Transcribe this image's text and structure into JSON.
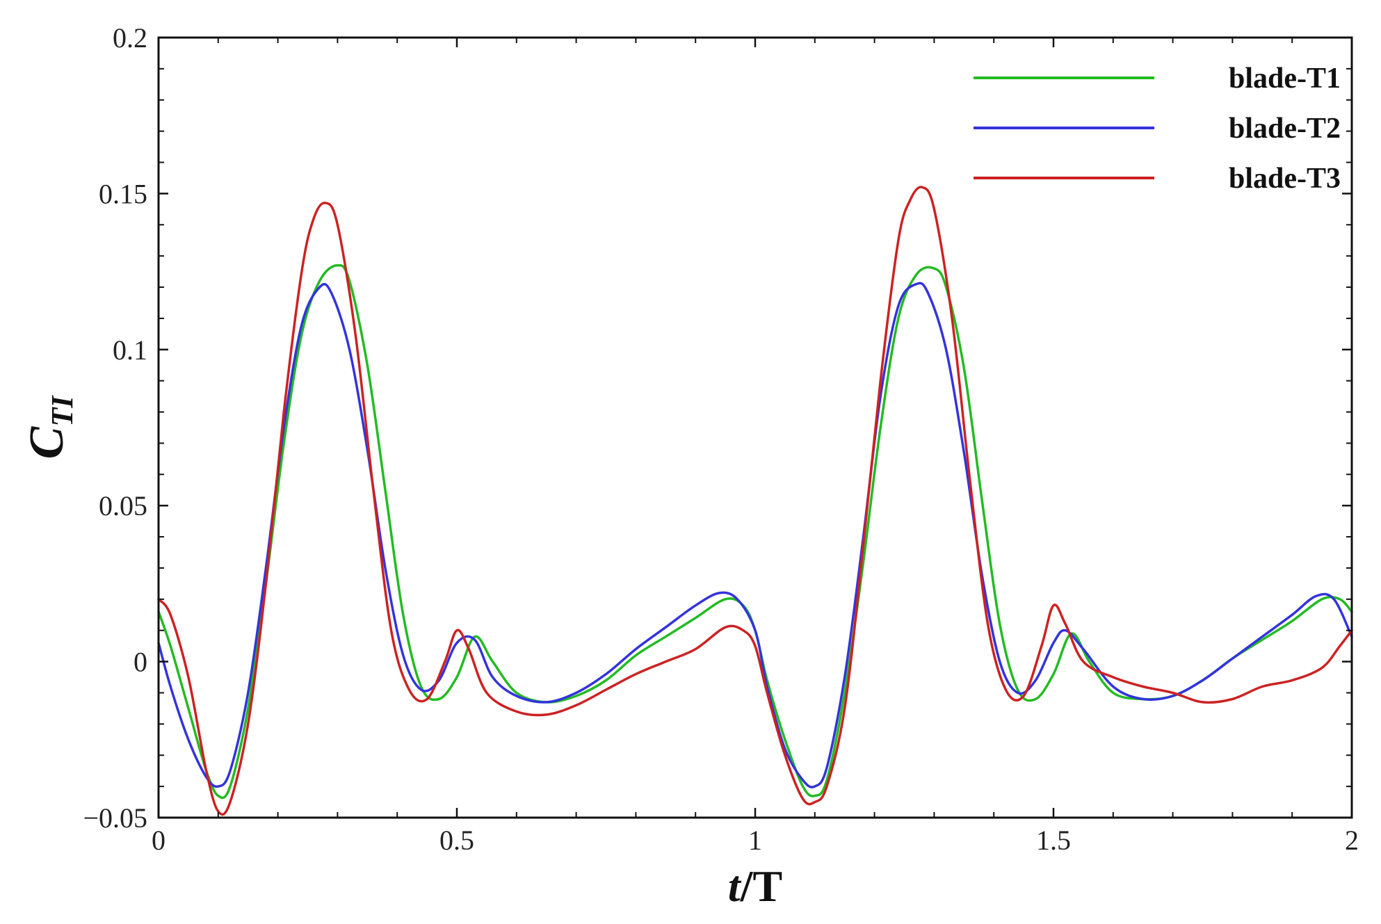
{
  "chart_data": {
    "type": "line",
    "xlabel_italic": "t",
    "xlabel_rest": "/T",
    "ylabel_main": "C",
    "ylabel_sub": "TI",
    "xlim": [
      0,
      2
    ],
    "ylim": [
      -0.05,
      0.2
    ],
    "xticks": [
      0,
      0.5,
      1,
      1.5,
      2
    ],
    "xtick_labels": [
      "0",
      "0.5",
      "1",
      "1.5",
      "2"
    ],
    "yticks": [
      -0.05,
      0,
      0.05,
      0.1,
      0.15,
      0.2
    ],
    "ytick_labels": [
      "−0.05",
      "0",
      "0.05",
      "0.1",
      "0.15",
      "0.2"
    ],
    "grid": false,
    "legend_position": "top-right",
    "series": [
      {
        "name": "blade-T1",
        "color": "#22bb22",
        "x": [
          0,
          0.02,
          0.05,
          0.08,
          0.1,
          0.12,
          0.15,
          0.18,
          0.21,
          0.24,
          0.27,
          0.3,
          0.32,
          0.35,
          0.38,
          0.41,
          0.44,
          0.47,
          0.5,
          0.53,
          0.56,
          0.6,
          0.65,
          0.7,
          0.75,
          0.8,
          0.85,
          0.9,
          0.95,
          0.98,
          1.0,
          1.02,
          1.05,
          1.08,
          1.1,
          1.12,
          1.15,
          1.18,
          1.21,
          1.24,
          1.27,
          1.3,
          1.32,
          1.35,
          1.38,
          1.41,
          1.44,
          1.47,
          1.5,
          1.53,
          1.56,
          1.6,
          1.65,
          1.7,
          1.75,
          1.8,
          1.85,
          1.9,
          1.95,
          1.98,
          2.0
        ],
        "y": [
          0.016,
          0.005,
          -0.015,
          -0.035,
          -0.043,
          -0.04,
          -0.015,
          0.025,
          0.07,
          0.105,
          0.122,
          0.127,
          0.122,
          0.095,
          0.055,
          0.015,
          -0.008,
          -0.012,
          -0.005,
          0.008,
          0.0,
          -0.01,
          -0.013,
          -0.011,
          -0.006,
          0.002,
          0.008,
          0.014,
          0.02,
          0.018,
          0.01,
          -0.006,
          -0.025,
          -0.04,
          -0.043,
          -0.038,
          -0.01,
          0.03,
          0.075,
          0.11,
          0.124,
          0.126,
          0.12,
          0.094,
          0.052,
          0.012,
          -0.009,
          -0.012,
          -0.004,
          0.009,
          0.0,
          -0.01,
          -0.012,
          -0.011,
          -0.006,
          0.001,
          0.007,
          0.013,
          0.02,
          0.02,
          0.016
        ]
      },
      {
        "name": "blade-T2",
        "color": "#3333dd",
        "x": [
          0,
          0.02,
          0.05,
          0.08,
          0.1,
          0.12,
          0.15,
          0.18,
          0.21,
          0.24,
          0.27,
          0.29,
          0.32,
          0.35,
          0.38,
          0.41,
          0.44,
          0.47,
          0.5,
          0.53,
          0.56,
          0.6,
          0.65,
          0.7,
          0.75,
          0.8,
          0.85,
          0.9,
          0.94,
          0.97,
          1.0,
          1.02,
          1.05,
          1.08,
          1.1,
          1.12,
          1.15,
          1.18,
          1.21,
          1.24,
          1.27,
          1.29,
          1.32,
          1.35,
          1.38,
          1.41,
          1.44,
          1.47,
          1.5,
          1.52,
          1.55,
          1.6,
          1.65,
          1.7,
          1.75,
          1.8,
          1.85,
          1.9,
          1.94,
          1.97,
          2.0
        ],
        "y": [
          0.006,
          -0.008,
          -0.025,
          -0.037,
          -0.04,
          -0.035,
          -0.01,
          0.03,
          0.075,
          0.108,
          0.12,
          0.118,
          0.1,
          0.068,
          0.03,
          0.002,
          -0.009,
          -0.006,
          0.006,
          0.007,
          -0.005,
          -0.011,
          -0.013,
          -0.01,
          -0.004,
          0.004,
          0.011,
          0.018,
          0.022,
          0.02,
          0.01,
          -0.008,
          -0.028,
          -0.038,
          -0.04,
          -0.034,
          -0.005,
          0.038,
          0.085,
          0.114,
          0.121,
          0.118,
          0.1,
          0.067,
          0.028,
          0.0,
          -0.01,
          -0.006,
          0.006,
          0.01,
          0.004,
          -0.008,
          -0.012,
          -0.011,
          -0.006,
          0.001,
          0.008,
          0.015,
          0.021,
          0.02,
          0.008
        ]
      },
      {
        "name": "blade-T3",
        "color": "#cc2222",
        "x": [
          0,
          0.02,
          0.05,
          0.08,
          0.1,
          0.12,
          0.15,
          0.18,
          0.21,
          0.24,
          0.26,
          0.28,
          0.3,
          0.33,
          0.36,
          0.39,
          0.42,
          0.45,
          0.48,
          0.5,
          0.52,
          0.55,
          0.6,
          0.65,
          0.7,
          0.75,
          0.8,
          0.85,
          0.9,
          0.95,
          0.98,
          1.0,
          1.02,
          1.05,
          1.08,
          1.1,
          1.12,
          1.15,
          1.18,
          1.21,
          1.24,
          1.26,
          1.28,
          1.3,
          1.33,
          1.36,
          1.39,
          1.42,
          1.45,
          1.48,
          1.5,
          1.52,
          1.55,
          1.6,
          1.65,
          1.7,
          1.75,
          1.8,
          1.85,
          1.9,
          1.95,
          1.98,
          2.0
        ],
        "y": [
          0.02,
          0.015,
          -0.005,
          -0.035,
          -0.048,
          -0.045,
          -0.02,
          0.025,
          0.08,
          0.125,
          0.142,
          0.147,
          0.14,
          0.105,
          0.055,
          0.01,
          -0.009,
          -0.012,
          0.0,
          0.01,
          0.004,
          -0.01,
          -0.016,
          -0.017,
          -0.014,
          -0.009,
          -0.004,
          0.0,
          0.004,
          0.011,
          0.01,
          0.005,
          -0.01,
          -0.03,
          -0.044,
          -0.045,
          -0.04,
          -0.015,
          0.035,
          0.09,
          0.135,
          0.148,
          0.152,
          0.145,
          0.11,
          0.058,
          0.012,
          -0.009,
          -0.011,
          0.005,
          0.018,
          0.012,
          0.0,
          -0.005,
          -0.008,
          -0.01,
          -0.013,
          -0.012,
          -0.008,
          -0.006,
          -0.002,
          0.005,
          0.01
        ]
      }
    ]
  }
}
